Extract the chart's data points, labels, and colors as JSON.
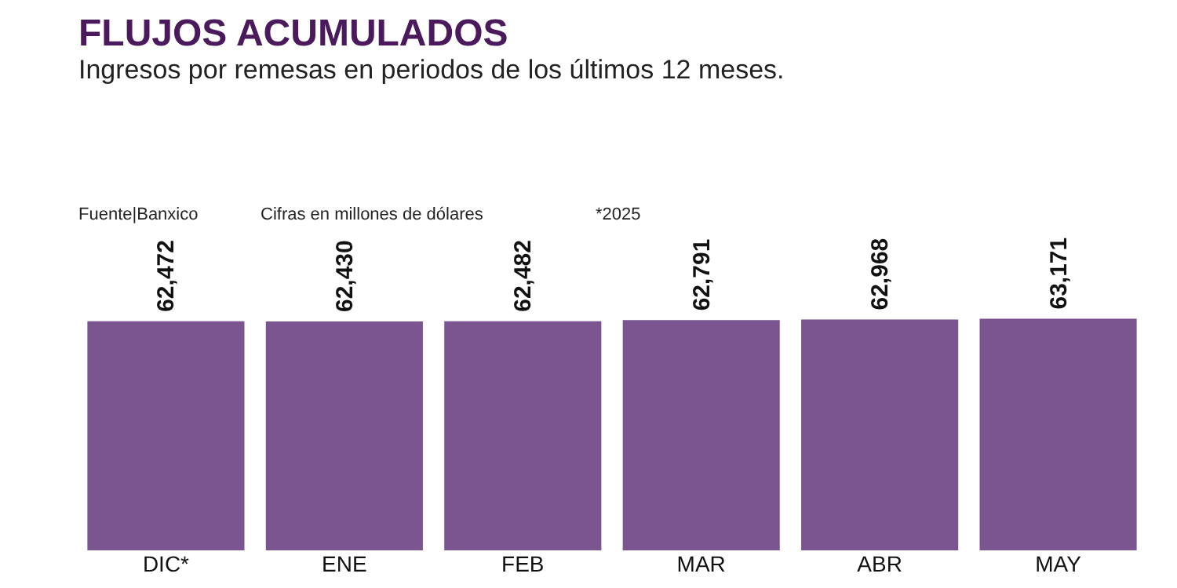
{
  "chart_data": {
    "type": "bar",
    "title": "FLUJOS ACUMULADOS",
    "subtitle": "Ingresos por remesas en periodos de los últimos 12 meses.",
    "annotations": [
      "Fuente|Banxico",
      "Cifras en millones de dólares",
      "*2025"
    ],
    "categories": [
      "DIC*",
      "ENE",
      "FEB",
      "MAR",
      "ABR",
      "MAY"
    ],
    "values": [
      62472,
      62430,
      62482,
      62791,
      62968,
      63171
    ],
    "value_labels": [
      "62,472",
      "62,430",
      "62,482",
      "62,791",
      "62,968",
      "63,171"
    ],
    "color": "#7a5590",
    "tick_labels": "x"
  }
}
